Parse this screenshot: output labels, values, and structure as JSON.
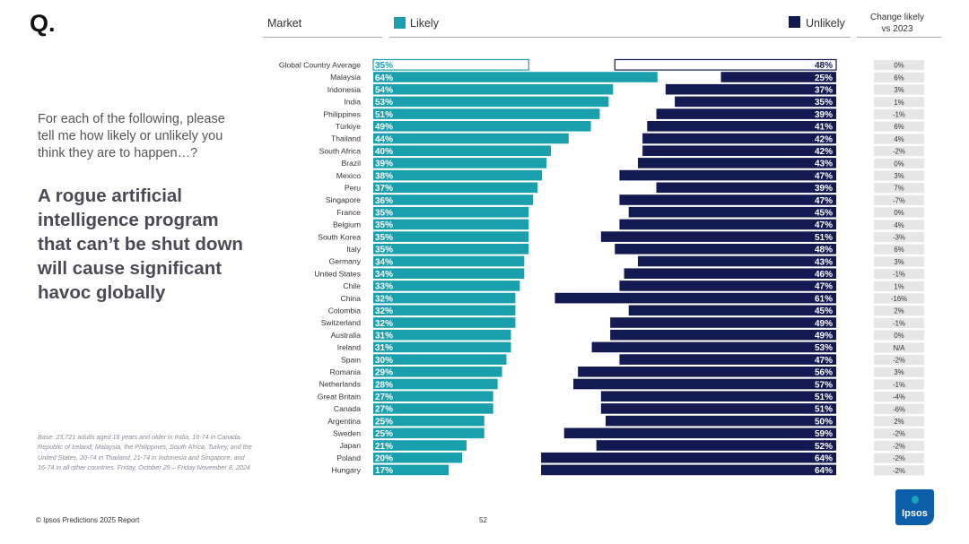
{
  "brand": {
    "logo_mark": "Q.",
    "footer": "© Ipsos Predictions 2025 Report",
    "page_number": "52",
    "logo_text": "Ipsos"
  },
  "left": {
    "question": "For each of the following, please tell me how likely or unlikely you think they are to happen…?",
    "headline": "A rogue artificial intelligence program that can’t be shut down will cause significant havoc globally",
    "base": "Base: 23,721 adults aged 18 years and older in India, 16-74 in Canada, Republic of Ireland, Malaysia, the Philippines, South Africa, Turkey, and the United States, 20-74 in Thailand, 21-74 in Indonesia and Singapore, and 16-74 in all other countries. Friday, October 25 – Friday November 8, 2024"
  },
  "header": {
    "market": "Market",
    "likely": "Likely",
    "unlikely": "Unlikely",
    "change_line1": "Change likely",
    "change_line2": "vs 2023"
  },
  "colors": {
    "likely": "#1a9fad",
    "unlikely": "#131a52",
    "change_bg": "#e6e6e6"
  },
  "chart_data": {
    "type": "bar",
    "title": "A rogue artificial intelligence program that can’t be shut down will cause significant havoc globally",
    "xlim": [
      0,
      100
    ],
    "categories": [
      "Global Country Average",
      "Malaysia",
      "Indonesia",
      "India",
      "Philippines",
      "Türkiye",
      "Thailand",
      "South Africa",
      "Brazil",
      "Mexico",
      "Peru",
      "Singapore",
      "France",
      "Belgium",
      "South Korea",
      "Italy",
      "Germany",
      "United States",
      "Chile",
      "China",
      "Colombia",
      "Switzerland",
      "Australia",
      "Ireland",
      "Spain",
      "Romania",
      "Netherlands",
      "Great Britain",
      "Canada",
      "Argentina",
      "Sweden",
      "Japan",
      "Poland",
      "Hungary"
    ],
    "series": [
      {
        "name": "Likely",
        "values": [
          35,
          64,
          54,
          53,
          51,
          49,
          44,
          40,
          39,
          38,
          37,
          36,
          35,
          35,
          35,
          35,
          34,
          34,
          33,
          32,
          32,
          32,
          31,
          31,
          30,
          29,
          28,
          27,
          27,
          25,
          25,
          21,
          20,
          17
        ]
      },
      {
        "name": "Unlikely",
        "values": [
          48,
          25,
          37,
          35,
          39,
          41,
          42,
          42,
          43,
          47,
          39,
          47,
          45,
          47,
          51,
          48,
          43,
          46,
          47,
          61,
          45,
          49,
          49,
          53,
          47,
          56,
          57,
          51,
          51,
          50,
          59,
          52,
          64,
          64
        ]
      }
    ],
    "change_vs_2023": [
      "0%",
      "6%",
      "3%",
      "1%",
      "-1%",
      "6%",
      "4%",
      "-2%",
      "0%",
      "3%",
      "7%",
      "-7%",
      "0%",
      "4%",
      "-3%",
      "6%",
      "3%",
      "-1%",
      "1%",
      "-16%",
      "2%",
      "-1%",
      "0%",
      "N/A",
      "-2%",
      "3%",
      "-1%",
      "-4%",
      "-6%",
      "2%",
      "-2%",
      "-2%",
      "-2%",
      "-2%"
    ]
  }
}
